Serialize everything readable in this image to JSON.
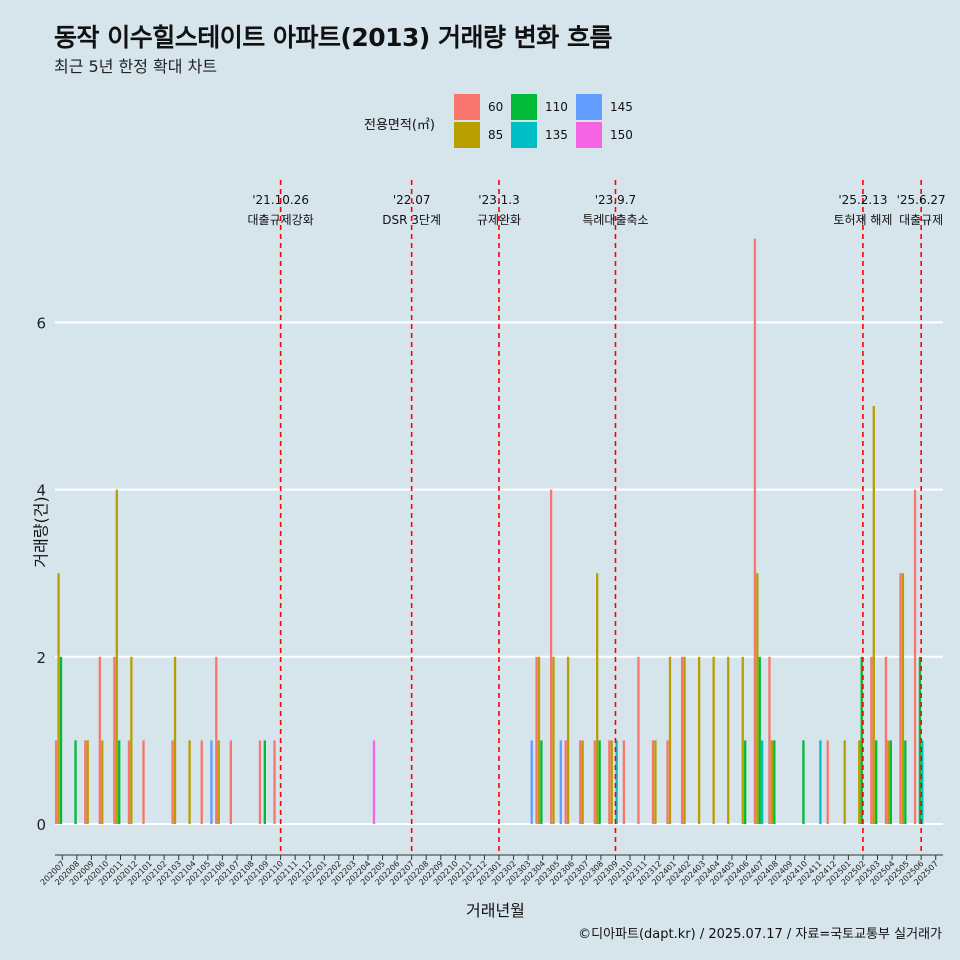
{
  "title": "동작 이수힐스테이트 아파트(2013) 거래량 변화 흐름",
  "subtitle": "최근 5년 한정 확대 차트",
  "caption": "©디아파트(dapt.kr) / 2025.07.17 / 자료=국토교통부 실거래가",
  "legend": {
    "title": "전용면적(㎡)",
    "items": [
      {
        "label": "60",
        "color": "#f8766d"
      },
      {
        "label": "85",
        "color": "#b79f00"
      },
      {
        "label": "110",
        "color": "#00ba38"
      },
      {
        "label": "135",
        "color": "#00bfc4"
      },
      {
        "label": "145",
        "color": "#619cff"
      },
      {
        "label": "150",
        "color": "#f564e3"
      }
    ]
  },
  "chart_data": {
    "type": "bar",
    "xlabel": "거래년월",
    "ylabel": "거래량(건)",
    "ylim": [
      0,
      7
    ],
    "yticks": [
      0,
      2,
      4,
      6
    ],
    "categories": [
      "202007",
      "202008",
      "202009",
      "202010",
      "202011",
      "202012",
      "202101",
      "202102",
      "202103",
      "202104",
      "202105",
      "202106",
      "202107",
      "202108",
      "202109",
      "202110",
      "202111",
      "202112",
      "202201",
      "202202",
      "202203",
      "202204",
      "202205",
      "202206",
      "202207",
      "202208",
      "202209",
      "202210",
      "202211",
      "202212",
      "202301",
      "202302",
      "202303",
      "202304",
      "202305",
      "202306",
      "202307",
      "202308",
      "202309",
      "202310",
      "202311",
      "202312",
      "202401",
      "202402",
      "202403",
      "202404",
      "202405",
      "202406",
      "202407",
      "202408",
      "202409",
      "202410",
      "202411",
      "202412",
      "202501",
      "202502",
      "202503",
      "202504",
      "202505",
      "202506",
      "202507"
    ],
    "series": [
      {
        "name": "60",
        "values": [
          1,
          0,
          1,
          2,
          2,
          1,
          1,
          0,
          1,
          0,
          1,
          2,
          1,
          0,
          1,
          1,
          0,
          0,
          0,
          0,
          0,
          0,
          0,
          0,
          0,
          0,
          0,
          0,
          0,
          0,
          0,
          0,
          0,
          2,
          4,
          1,
          1,
          1,
          1,
          1,
          2,
          1,
          1,
          2,
          0,
          0,
          0,
          0,
          7,
          2,
          0,
          0,
          0,
          1,
          0,
          0,
          2,
          2,
          3,
          4,
          0
        ]
      },
      {
        "name": "85",
        "values": [
          3,
          0,
          1,
          1,
          4,
          2,
          0,
          0,
          2,
          1,
          0,
          1,
          0,
          0,
          0,
          0,
          0,
          0,
          0,
          0,
          0,
          0,
          0,
          0,
          0,
          0,
          0,
          0,
          0,
          0,
          0,
          0,
          0,
          2,
          2,
          2,
          1,
          3,
          1,
          0,
          0,
          1,
          2,
          2,
          2,
          2,
          2,
          2,
          3,
          1,
          0,
          0,
          0,
          0,
          1,
          1,
          5,
          1,
          3,
          0,
          0
        ]
      },
      {
        "name": "110",
        "values": [
          2,
          1,
          0,
          0,
          1,
          0,
          0,
          0,
          0,
          0,
          0,
          0,
          0,
          0,
          1,
          0,
          0,
          0,
          0,
          0,
          0,
          0,
          0,
          0,
          0,
          0,
          0,
          0,
          0,
          0,
          0,
          0,
          0,
          1,
          0,
          0,
          0,
          1,
          0,
          0,
          0,
          0,
          0,
          0,
          0,
          0,
          0,
          1,
          2,
          1,
          0,
          1,
          0,
          0,
          0,
          2,
          1,
          1,
          1,
          2,
          0
        ]
      },
      {
        "name": "135",
        "values": [
          0,
          0,
          0,
          0,
          0,
          0,
          0,
          0,
          0,
          0,
          0,
          0,
          0,
          0,
          0,
          0,
          0,
          0,
          0,
          0,
          0,
          0,
          0,
          0,
          0,
          0,
          0,
          0,
          0,
          0,
          0,
          0,
          0,
          0,
          0,
          0,
          0,
          0,
          1,
          0,
          0,
          0,
          0,
          0,
          0,
          0,
          0,
          0,
          1,
          0,
          0,
          0,
          1,
          0,
          0,
          0,
          0,
          0,
          0,
          1,
          0
        ]
      },
      {
        "name": "145",
        "values": [
          0,
          0,
          0,
          0,
          0,
          0,
          0,
          0,
          0,
          0,
          1,
          0,
          0,
          0,
          0,
          0,
          0,
          0,
          0,
          0,
          0,
          0,
          0,
          0,
          0,
          0,
          0,
          0,
          0,
          0,
          0,
          0,
          1,
          0,
          1,
          0,
          0,
          0,
          0,
          0,
          0,
          0,
          0,
          0,
          0,
          0,
          0,
          0,
          0,
          0,
          0,
          0,
          0,
          0,
          0,
          0,
          0,
          0,
          0,
          0,
          0
        ]
      },
      {
        "name": "150",
        "values": [
          0,
          0,
          0,
          0,
          0,
          0,
          0,
          0,
          0,
          0,
          0,
          0,
          0,
          0,
          0,
          0,
          0,
          0,
          0,
          0,
          0,
          1,
          0,
          0,
          0,
          0,
          0,
          0,
          0,
          0,
          0,
          0,
          0,
          0,
          0,
          0,
          0,
          0,
          0,
          0,
          0,
          0,
          0,
          0,
          0,
          0,
          0,
          0,
          0,
          0,
          0,
          0,
          0,
          0,
          0,
          0,
          0,
          0,
          0,
          0,
          0
        ]
      }
    ],
    "annotations": [
      {
        "date": "'21.10.26",
        "label": "대출규제강화",
        "month": "202110"
      },
      {
        "date": "'22.07",
        "label": "DSR 3단계",
        "month": "202207"
      },
      {
        "date": "'23.1.3",
        "label": "규제완화",
        "month": "202301"
      },
      {
        "date": "'23.9.7",
        "label": "특례대출축소",
        "month": "202309"
      },
      {
        "date": "'25.2.13",
        "label": "토허제 해제",
        "month": "202502"
      },
      {
        "date": "'25.6.27",
        "label": "대출규제",
        "month": "202506"
      }
    ],
    "grid": true,
    "legend_position": "top"
  }
}
